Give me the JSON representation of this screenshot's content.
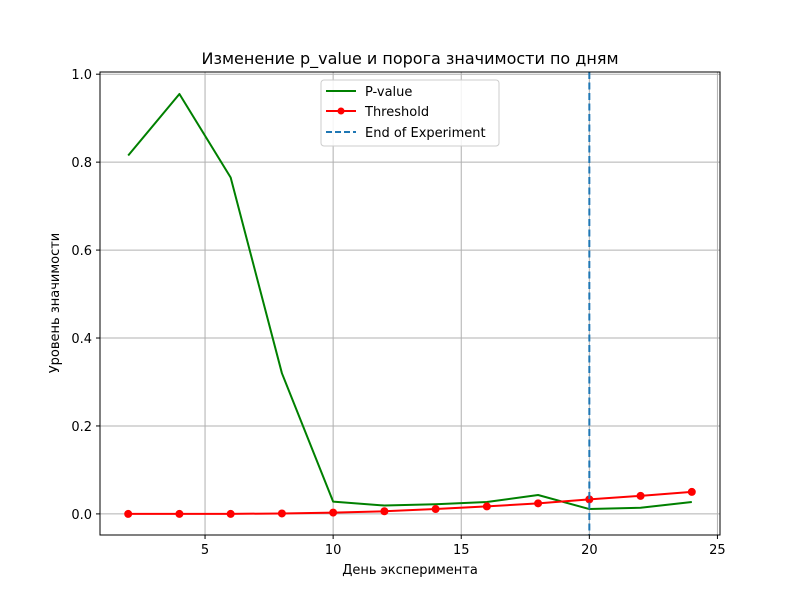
{
  "chart_data": {
    "type": "line",
    "title": "Изменение p_value и порога значимости по дням",
    "xlabel": "День эксперимента",
    "ylabel": "Уровень значимости",
    "xlim": [
      0.9,
      25.1
    ],
    "ylim": [
      -0.048,
      1.005
    ],
    "xticks": [
      5,
      10,
      15,
      20,
      25
    ],
    "yticks": [
      0.0,
      0.2,
      0.4,
      0.6,
      0.8,
      1.0
    ],
    "xtick_labels": [
      "5",
      "10",
      "15",
      "20",
      "25"
    ],
    "ytick_labels": [
      "0.0",
      "0.2",
      "0.4",
      "0.6",
      "0.8",
      "1.0"
    ],
    "grid": true,
    "legend_position": "top-center",
    "series": [
      {
        "name": "P-value",
        "color": "#008000",
        "marker": "none",
        "x": [
          2,
          4,
          6,
          8,
          10,
          12,
          14,
          16,
          18,
          20,
          22,
          24
        ],
        "y": [
          0.815,
          0.955,
          0.765,
          0.32,
          0.028,
          0.019,
          0.022,
          0.027,
          0.043,
          0.011,
          0.014,
          0.027
        ]
      },
      {
        "name": "Threshold",
        "color": "#ff0000",
        "marker": "circle",
        "x": [
          2,
          4,
          6,
          8,
          10,
          12,
          14,
          16,
          18,
          20,
          22,
          24
        ],
        "y": [
          0.0,
          0.0,
          0.0,
          0.001,
          0.003,
          0.006,
          0.011,
          0.017,
          0.024,
          0.033,
          0.041,
          0.05
        ]
      }
    ],
    "vlines": [
      {
        "name": "End of Experiment",
        "x": 20,
        "color": "#1f77b4",
        "style": "dashed"
      }
    ]
  }
}
